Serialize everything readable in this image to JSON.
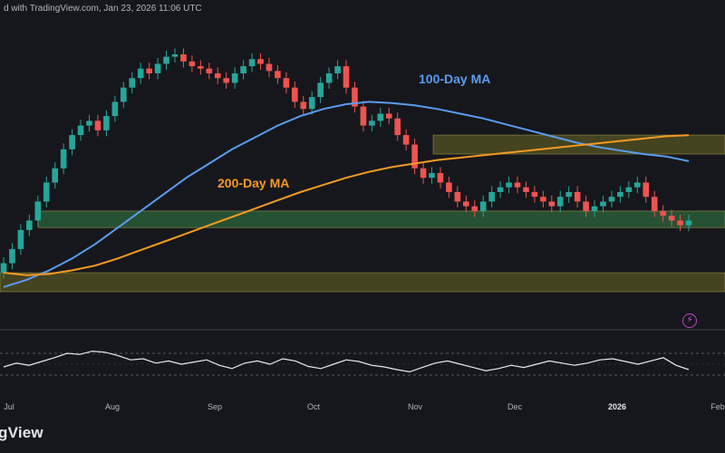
{
  "header": {
    "text": "d with TradingView.com, Jan 23, 2026 11:06 UTC"
  },
  "brand": {
    "text": "gView"
  },
  "colors": {
    "background": "#16171c",
    "bull": "#26a69a",
    "bear": "#ef5350",
    "ma100": "#5b9cf0",
    "ma200": "#f59a23",
    "zone_green": "#2f6b3d",
    "zone_yellow": "#6e6a25",
    "rsi": "#e8eaf0"
  },
  "icons": {
    "alert": "lightning-bolt-icon"
  },
  "chart_data": [
    {
      "type": "candlestick",
      "x_axis_labels": [
        {
          "text": "Jul",
          "bold": false
        },
        {
          "text": "Aug",
          "bold": false
        },
        {
          "text": "Sep",
          "bold": false
        },
        {
          "text": "Oct",
          "bold": false
        },
        {
          "text": "Nov",
          "bold": false
        },
        {
          "text": "Dec",
          "bold": false
        },
        {
          "text": "2026",
          "bold": true
        },
        {
          "text": "Feb",
          "bold": false
        }
      ],
      "ylim": [
        0,
        100
      ],
      "closes": [
        12,
        18,
        26,
        30,
        38,
        46,
        52,
        60,
        66,
        70,
        72,
        68,
        74,
        80,
        86,
        90,
        94,
        92,
        96,
        99,
        100,
        97,
        95,
        94,
        92,
        90,
        88,
        92,
        95,
        98,
        96,
        93,
        90,
        86,
        80,
        77,
        82,
        88,
        92,
        95,
        86,
        78,
        70,
        72,
        75,
        73,
        66,
        62,
        52,
        48,
        50,
        46,
        42,
        38,
        36,
        34,
        38,
        42,
        44,
        46,
        44,
        42,
        40,
        38,
        36,
        40,
        42,
        38,
        34,
        36,
        38,
        40,
        42,
        44,
        46,
        40,
        34,
        32,
        30,
        28,
        30
      ],
      "series": [
        {
          "name": "100-Day MA",
          "values": [
            2,
            5,
            9,
            14,
            20,
            27,
            34,
            41,
            48,
            54,
            60,
            65,
            70,
            74,
            77,
            79,
            80,
            79.5,
            78.5,
            77,
            75,
            73,
            70.5,
            68,
            65.5,
            63,
            61,
            59.5,
            58,
            57,
            55
          ]
        },
        {
          "name": "200-Day MA",
          "values": [
            8,
            7,
            7.5,
            9,
            11,
            14,
            17.5,
            21,
            24.5,
            28,
            31.5,
            35,
            38.5,
            42,
            45,
            48,
            50.5,
            52.5,
            54,
            55.5,
            56.5,
            57.5,
            58.5,
            59.5,
            60.5,
            61.5,
            62.5,
            63.5,
            64.5,
            65.5,
            66
          ]
        }
      ],
      "zones": [
        {
          "name": "upper-resistance",
          "from": 58,
          "to": 66
        },
        {
          "name": "green-support",
          "from": 27,
          "to": 34
        },
        {
          "name": "lower-support",
          "from": 0,
          "to": 8
        }
      ]
    },
    {
      "type": "line",
      "series": [
        {
          "name": "",
          "values": [
            45,
            52,
            48,
            55,
            62,
            70,
            68,
            74,
            72,
            66,
            58,
            60,
            52,
            56,
            50,
            54,
            58,
            48,
            42,
            52,
            56,
            50,
            60,
            56,
            46,
            42,
            50,
            58,
            55,
            48,
            45,
            40,
            36,
            44,
            52,
            56,
            50,
            44,
            38,
            42,
            48,
            44,
            50,
            56,
            52,
            48,
            52,
            58,
            60,
            55,
            50,
            56,
            62,
            48,
            40
          ]
        }
      ],
      "ylim": [
        0,
        100
      ],
      "reference_lines": [
        70,
        30
      ]
    }
  ]
}
